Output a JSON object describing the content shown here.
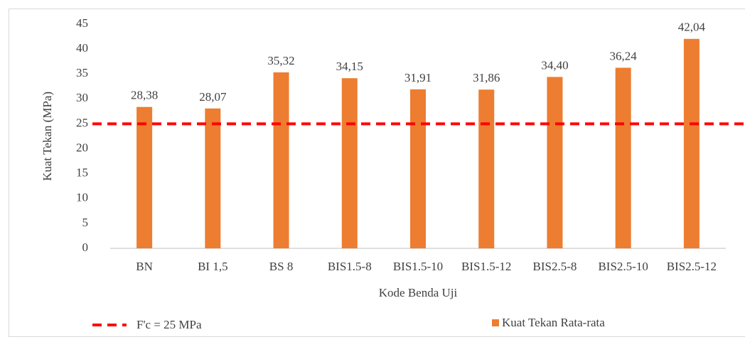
{
  "chart_data": {
    "type": "bar",
    "x_label": "Kode Benda Uji",
    "y_label": "Kuat Tekan (MPa)",
    "categories": [
      "BN",
      "BI 1,5",
      "BS 8",
      "BIS1.5-8",
      "BIS1.5-10",
      "BIS1.5-12",
      "BIS2.5-8",
      "BIS2.5-10",
      "BIS2.5-12"
    ],
    "series": [
      {
        "name": "Kuat Tekan Rata-rata",
        "color": "#ed7d31",
        "values": [
          28.38,
          28.07,
          35.32,
          34.15,
          31.91,
          31.86,
          34.4,
          36.24,
          42.04
        ],
        "value_labels": [
          "28,38",
          "28,07",
          "35,32",
          "34,15",
          "31,91",
          "31,86",
          "34,40",
          "36,24",
          "42,04"
        ]
      }
    ],
    "reference_line": {
      "value": 25,
      "label": "F'c = 25 MPa",
      "color": "#ff0000"
    },
    "ylim": [
      0,
      45
    ],
    "yticks": [
      0,
      5,
      10,
      15,
      20,
      25,
      30,
      35,
      40,
      45
    ],
    "grid": false
  }
}
